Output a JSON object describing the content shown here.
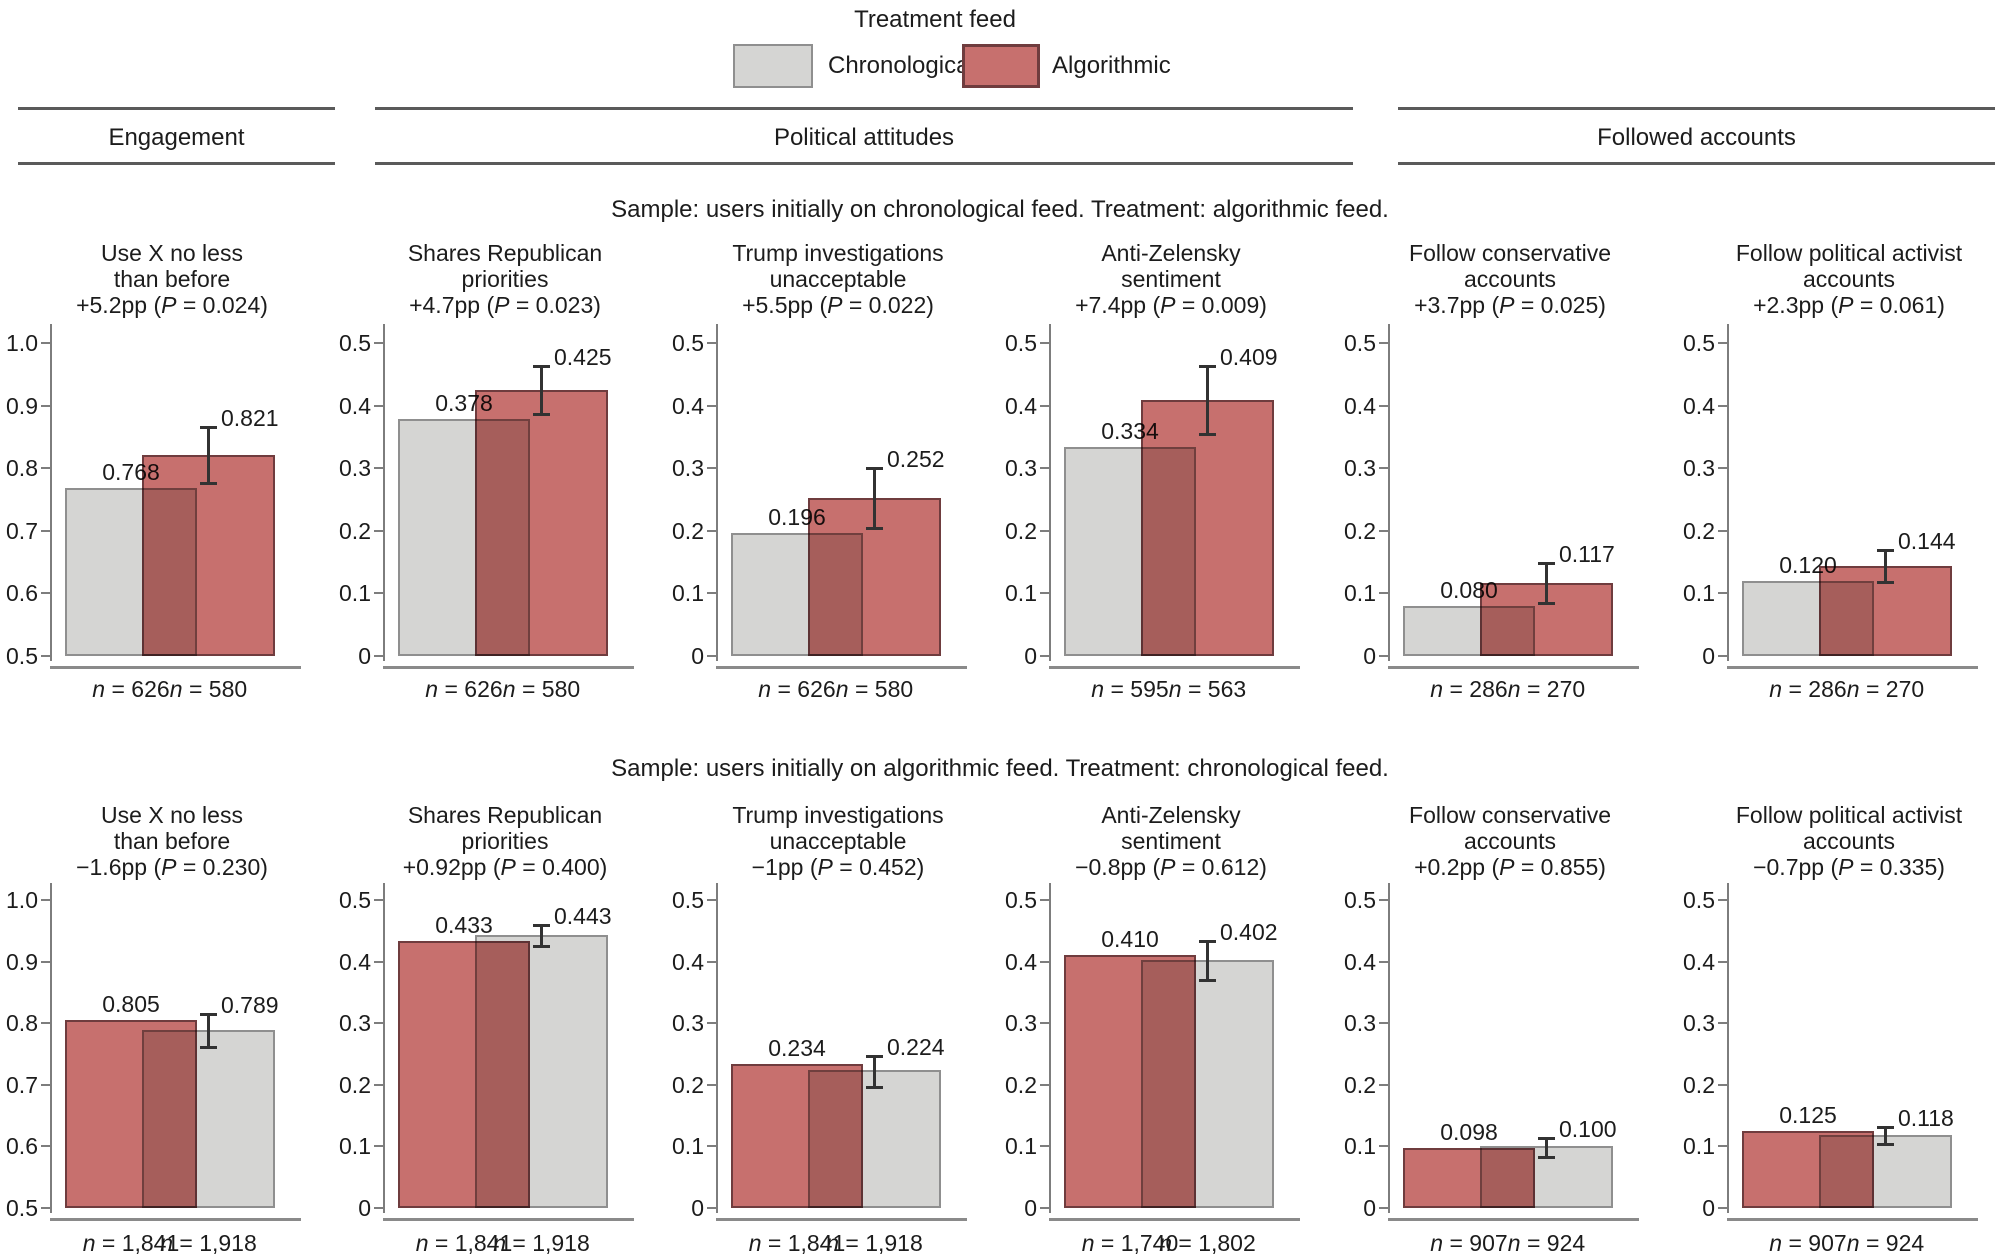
{
  "legend": {
    "title": "Treatment feed",
    "items": [
      {
        "id": "chronological",
        "label": "Chronological",
        "fill": "#d5d5d3",
        "border": "#8f8f8f"
      },
      {
        "id": "algorithmic",
        "label": "Algorithmic",
        "fill": "#c7706e",
        "border": "#6f3c3e"
      }
    ]
  },
  "sections": [
    {
      "id": "engagement",
      "label": "Engagement"
    },
    {
      "id": "political-attitudes",
      "label": "Political attitudes"
    },
    {
      "id": "followed-accounts",
      "label": "Followed accounts"
    }
  ],
  "row_captions": [
    "Sample: users initially on chronological feed. Treatment: algorithmic feed.",
    "Sample: users initially on algorithmic feed. Treatment: chronological feed."
  ],
  "chart_data": {
    "type": "bar",
    "note": "Paired overlapping bars; left bar = baseline feed group, right bar = treatment feed group with 95% CI whisker. CI values estimated from whisker pixels.",
    "colors": {
      "chronological": {
        "fill": "#d5d5d3",
        "border": "#8f8f8f"
      },
      "algorithmic": {
        "fill": "#c7706e",
        "border": "#6f3c3e"
      }
    },
    "panels": [
      {
        "row": 0,
        "col": 0,
        "section": "Engagement",
        "title_lines": [
          "Use X no less",
          "than before"
        ],
        "effect": "+5.2pp (P = 0.024)",
        "ylim": [
          0.5,
          1.0
        ],
        "ytick_labels": [
          "1.0",
          "0.9",
          "0.8",
          "0.7",
          "0.6",
          "0.5"
        ],
        "bars": [
          {
            "group": "chronological",
            "value": 0.768,
            "label": "0.768",
            "n": "n = 626"
          },
          {
            "group": "algorithmic",
            "value": 0.821,
            "label": "0.821",
            "n": "n = 580",
            "ci": [
              0.776,
              0.866
            ]
          }
        ]
      },
      {
        "row": 0,
        "col": 1,
        "section": "Political attitudes",
        "title_lines": [
          "Shares Republican",
          "priorities"
        ],
        "effect": "+4.7pp (P = 0.023)",
        "ylim": [
          0,
          0.5
        ],
        "ytick_labels": [
          "0.5",
          "0.4",
          "0.3",
          "0.2",
          "0.1",
          "0"
        ],
        "bars": [
          {
            "group": "chronological",
            "value": 0.378,
            "label": "0.378",
            "n": "n = 626"
          },
          {
            "group": "algorithmic",
            "value": 0.425,
            "label": "0.425",
            "n": "n = 580",
            "ci": [
              0.386,
              0.464
            ]
          }
        ]
      },
      {
        "row": 0,
        "col": 2,
        "section": "Political attitudes",
        "title_lines": [
          "Trump investigations",
          "unacceptable"
        ],
        "effect": "+5.5pp (P = 0.022)",
        "ylim": [
          0,
          0.5
        ],
        "ytick_labels": [
          "0.5",
          "0.4",
          "0.3",
          "0.2",
          "0.1",
          "0"
        ],
        "bars": [
          {
            "group": "chronological",
            "value": 0.196,
            "label": "0.196",
            "n": "n = 626"
          },
          {
            "group": "algorithmic",
            "value": 0.252,
            "label": "0.252",
            "n": "n = 580",
            "ci": [
              0.204,
              0.3
            ]
          }
        ]
      },
      {
        "row": 0,
        "col": 3,
        "section": "Political attitudes",
        "title_lines": [
          "Anti-Zelensky",
          "sentiment"
        ],
        "effect": "+7.4pp (P = 0.009)",
        "ylim": [
          0,
          0.5
        ],
        "ytick_labels": [
          "0.5",
          "0.4",
          "0.3",
          "0.2",
          "0.1",
          "0"
        ],
        "bars": [
          {
            "group": "chronological",
            "value": 0.334,
            "label": "0.334",
            "n": "n = 595"
          },
          {
            "group": "algorithmic",
            "value": 0.409,
            "label": "0.409",
            "n": "n = 563",
            "ci": [
              0.354,
              0.464
            ]
          }
        ]
      },
      {
        "row": 0,
        "col": 4,
        "section": "Followed accounts",
        "title_lines": [
          "Follow conservative",
          "accounts"
        ],
        "effect": "+3.7pp (P = 0.025)",
        "ylim": [
          0,
          0.5
        ],
        "ytick_labels": [
          "0.5",
          "0.4",
          "0.3",
          "0.2",
          "0.1",
          "0"
        ],
        "bars": [
          {
            "group": "chronological",
            "value": 0.08,
            "label": "0.080",
            "n": "n = 286"
          },
          {
            "group": "algorithmic",
            "value": 0.117,
            "label": "0.117",
            "n": "n = 270",
            "ci": [
              0.085,
              0.149
            ]
          }
        ]
      },
      {
        "row": 0,
        "col": 5,
        "section": "Followed accounts",
        "title_lines": [
          "Follow political activist",
          "accounts"
        ],
        "effect": "+2.3pp (P = 0.061)",
        "ylim": [
          0,
          0.5
        ],
        "ytick_labels": [
          "0.5",
          "0.4",
          "0.3",
          "0.2",
          "0.1",
          "0"
        ],
        "bars": [
          {
            "group": "chronological",
            "value": 0.12,
            "label": "0.120",
            "n": "n = 286"
          },
          {
            "group": "algorithmic",
            "value": 0.144,
            "label": "0.144",
            "n": "n = 270",
            "ci": [
              0.118,
              0.17
            ]
          }
        ]
      },
      {
        "row": 1,
        "col": 0,
        "section": "Engagement",
        "title_lines": [
          "Use X no less",
          "than before"
        ],
        "effect": "−1.6pp (P = 0.230)",
        "ylim": [
          0.5,
          1.0
        ],
        "ytick_labels": [
          "1.0",
          "0.9",
          "0.8",
          "0.7",
          "0.6",
          "0.5"
        ],
        "bars": [
          {
            "group": "algorithmic",
            "value": 0.805,
            "label": "0.805",
            "n": "n = 1,841"
          },
          {
            "group": "chronological",
            "value": 0.789,
            "label": "0.789",
            "n": "n = 1,918",
            "ci": [
              0.762,
              0.815
            ]
          }
        ]
      },
      {
        "row": 1,
        "col": 1,
        "section": "Political attitudes",
        "title_lines": [
          "Shares Republican",
          "priorities"
        ],
        "effect": "+0.92pp (P = 0.400)",
        "ylim": [
          0,
          0.5
        ],
        "ytick_labels": [
          "0.5",
          "0.4",
          "0.3",
          "0.2",
          "0.1",
          "0"
        ],
        "bars": [
          {
            "group": "algorithmic",
            "value": 0.433,
            "label": "0.433",
            "n": "n = 1,841"
          },
          {
            "group": "chronological",
            "value": 0.443,
            "label": "0.443",
            "n": "n = 1,918",
            "ci": [
              0.426,
              0.46
            ]
          }
        ]
      },
      {
        "row": 1,
        "col": 2,
        "section": "Political attitudes",
        "title_lines": [
          "Trump investigations",
          "unacceptable"
        ],
        "effect": "−1pp (P = 0.452)",
        "ylim": [
          0,
          0.5
        ],
        "ytick_labels": [
          "0.5",
          "0.4",
          "0.3",
          "0.2",
          "0.1",
          "0"
        ],
        "bars": [
          {
            "group": "algorithmic",
            "value": 0.234,
            "label": "0.234",
            "n": "n = 1,841"
          },
          {
            "group": "chronological",
            "value": 0.224,
            "label": "0.224",
            "n": "n = 1,918",
            "ci": [
              0.197,
              0.246
            ]
          }
        ]
      },
      {
        "row": 1,
        "col": 3,
        "section": "Political attitudes",
        "title_lines": [
          "Anti-Zelensky",
          "sentiment"
        ],
        "effect": "−0.8pp (P = 0.612)",
        "ylim": [
          0,
          0.5
        ],
        "ytick_labels": [
          "0.5",
          "0.4",
          "0.3",
          "0.2",
          "0.1",
          "0"
        ],
        "bars": [
          {
            "group": "algorithmic",
            "value": 0.41,
            "label": "0.410",
            "n": "n = 1,740"
          },
          {
            "group": "chronological",
            "value": 0.402,
            "label": "0.402",
            "n": "n = 1,802",
            "ci": [
              0.37,
              0.433
            ]
          }
        ]
      },
      {
        "row": 1,
        "col": 4,
        "section": "Followed accounts",
        "title_lines": [
          "Follow conservative",
          "accounts"
        ],
        "effect": "+0.2pp (P = 0.855)",
        "ylim": [
          0,
          0.5
        ],
        "ytick_labels": [
          "0.5",
          "0.4",
          "0.3",
          "0.2",
          "0.1",
          "0"
        ],
        "bars": [
          {
            "group": "algorithmic",
            "value": 0.098,
            "label": "0.098",
            "n": "n = 907"
          },
          {
            "group": "chronological",
            "value": 0.1,
            "label": "0.100",
            "n": "n = 924",
            "ci": [
              0.083,
              0.114
            ]
          }
        ]
      },
      {
        "row": 1,
        "col": 5,
        "section": "Followed accounts",
        "title_lines": [
          "Follow political activist",
          "accounts"
        ],
        "effect": "−0.7pp (P = 0.335)",
        "ylim": [
          0,
          0.5
        ],
        "ytick_labels": [
          "0.5",
          "0.4",
          "0.3",
          "0.2",
          "0.1",
          "0"
        ],
        "bars": [
          {
            "group": "algorithmic",
            "value": 0.125,
            "label": "0.125",
            "n": "n = 907"
          },
          {
            "group": "chronological",
            "value": 0.118,
            "label": "0.118",
            "n": "n = 924",
            "ci": [
              0.104,
              0.131
            ]
          }
        ]
      }
    ]
  }
}
